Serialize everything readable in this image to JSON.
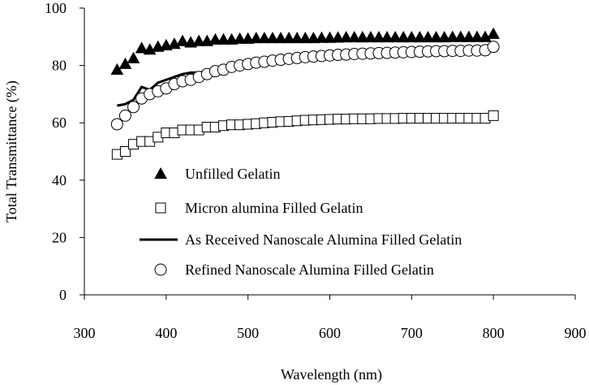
{
  "chart_data": {
    "type": "scatter",
    "title": "",
    "xlabel": "Wavelength (nm)",
    "ylabel": "Total Transmittance (%)",
    "xlim": [
      300,
      900
    ],
    "ylim": [
      0,
      100
    ],
    "xticks": [
      300,
      400,
      500,
      600,
      700,
      800,
      900
    ],
    "yticks": [
      0,
      20,
      40,
      60,
      80,
      100
    ],
    "grid": false,
    "legend_position": "center-left",
    "series": [
      {
        "name": "Unfilled Gelatin",
        "style": "triangle-filled",
        "color": "#000000",
        "x": [
          340,
          350,
          360,
          370,
          380,
          390,
          400,
          410,
          420,
          430,
          440,
          450,
          460,
          470,
          480,
          490,
          500,
          510,
          520,
          530,
          540,
          550,
          560,
          570,
          580,
          590,
          600,
          610,
          620,
          630,
          640,
          650,
          660,
          670,
          680,
          690,
          700,
          710,
          720,
          730,
          740,
          750,
          760,
          770,
          780,
          790,
          800
        ],
        "y": [
          78.5,
          80.5,
          82.5,
          86,
          85.5,
          86.5,
          87,
          87.5,
          88.5,
          88,
          88.5,
          88.5,
          89,
          89,
          89,
          89.3,
          89.3,
          89.5,
          89.5,
          89.5,
          89.5,
          89.5,
          89.5,
          89.5,
          89.5,
          89.6,
          89.6,
          89.7,
          89.8,
          89.8,
          89.8,
          89.8,
          89.8,
          89.8,
          89.8,
          89.8,
          89.8,
          89.8,
          89.8,
          89.8,
          89.8,
          89.9,
          89.9,
          89.9,
          89.9,
          89.9,
          91
        ]
      },
      {
        "name": "Micron alumina Filled Gelatin",
        "style": "square-open",
        "color": "#000000",
        "x": [
          340,
          350,
          360,
          370,
          380,
          390,
          400,
          410,
          420,
          430,
          440,
          450,
          460,
          470,
          480,
          490,
          500,
          510,
          520,
          530,
          540,
          550,
          560,
          570,
          580,
          590,
          600,
          610,
          620,
          630,
          640,
          650,
          660,
          670,
          680,
          690,
          700,
          710,
          720,
          730,
          740,
          750,
          760,
          770,
          780,
          790,
          800
        ],
        "y": [
          49,
          50,
          52.5,
          53.5,
          53.5,
          55,
          56.5,
          56.5,
          57.5,
          57.5,
          57.5,
          58.5,
          58.5,
          59,
          59.3,
          59.3,
          59.5,
          59.7,
          60,
          60.2,
          60.4,
          60.5,
          60.7,
          60.9,
          61,
          61.1,
          61.2,
          61.3,
          61.3,
          61.4,
          61.4,
          61.4,
          61.5,
          61.5,
          61.5,
          61.6,
          61.6,
          61.6,
          61.6,
          61.6,
          61.6,
          61.6,
          61.6,
          61.6,
          61.6,
          61.6,
          62.5
        ]
      },
      {
        "name": "As Received Nanoscale Alumina Filled Gelatin",
        "style": "line",
        "color": "#000000",
        "x": [
          340,
          350,
          360,
          370,
          380,
          390,
          400,
          410,
          420,
          430,
          440,
          450,
          460,
          470,
          480,
          490,
          500,
          510,
          520,
          530,
          540,
          550,
          560,
          570,
          580,
          590,
          600,
          610,
          620,
          630,
          640,
          650,
          660,
          670,
          680,
          690,
          700,
          710,
          720,
          730,
          740,
          750,
          760,
          770,
          780,
          790,
          800
        ],
        "y": [
          66,
          66.5,
          68,
          72.5,
          71.5,
          74,
          75,
          76,
          77,
          77.5,
          77.5,
          78,
          78.5,
          79,
          79.5,
          80,
          80.5,
          81,
          81.5,
          82,
          82.5,
          82.8,
          83,
          83.3,
          83.5,
          83.7,
          84,
          84.2,
          84.4,
          84.6,
          84.8,
          85,
          85.1,
          85.3,
          85.4,
          85.5,
          85.6,
          85.7,
          85.8,
          85.9,
          86,
          86,
          86,
          86.1,
          86.1,
          86.2,
          87
        ]
      },
      {
        "name": "Refined Nanoscale Alumina Filled Gelatin",
        "style": "circle-open",
        "color": "#000000",
        "x": [
          340,
          350,
          360,
          370,
          380,
          390,
          400,
          410,
          420,
          430,
          440,
          450,
          460,
          470,
          480,
          490,
          500,
          510,
          520,
          530,
          540,
          550,
          560,
          570,
          580,
          590,
          600,
          610,
          620,
          630,
          640,
          650,
          660,
          670,
          680,
          690,
          700,
          710,
          720,
          730,
          740,
          750,
          760,
          770,
          780,
          790,
          800
        ],
        "y": [
          59.5,
          62.5,
          65.5,
          68.5,
          70,
          71,
          72,
          73.5,
          74.5,
          75,
          76,
          77,
          78,
          78.5,
          79.5,
          80,
          80.5,
          81,
          81.3,
          81.7,
          82,
          82.3,
          82.6,
          82.9,
          83.1,
          83.3,
          83.5,
          83.7,
          83.8,
          84,
          84.1,
          84.2,
          84.3,
          84.4,
          84.5,
          84.6,
          84.7,
          84.8,
          84.9,
          85,
          85,
          85.1,
          85.1,
          85.2,
          85.2,
          85.3,
          86.5
        ]
      }
    ]
  }
}
